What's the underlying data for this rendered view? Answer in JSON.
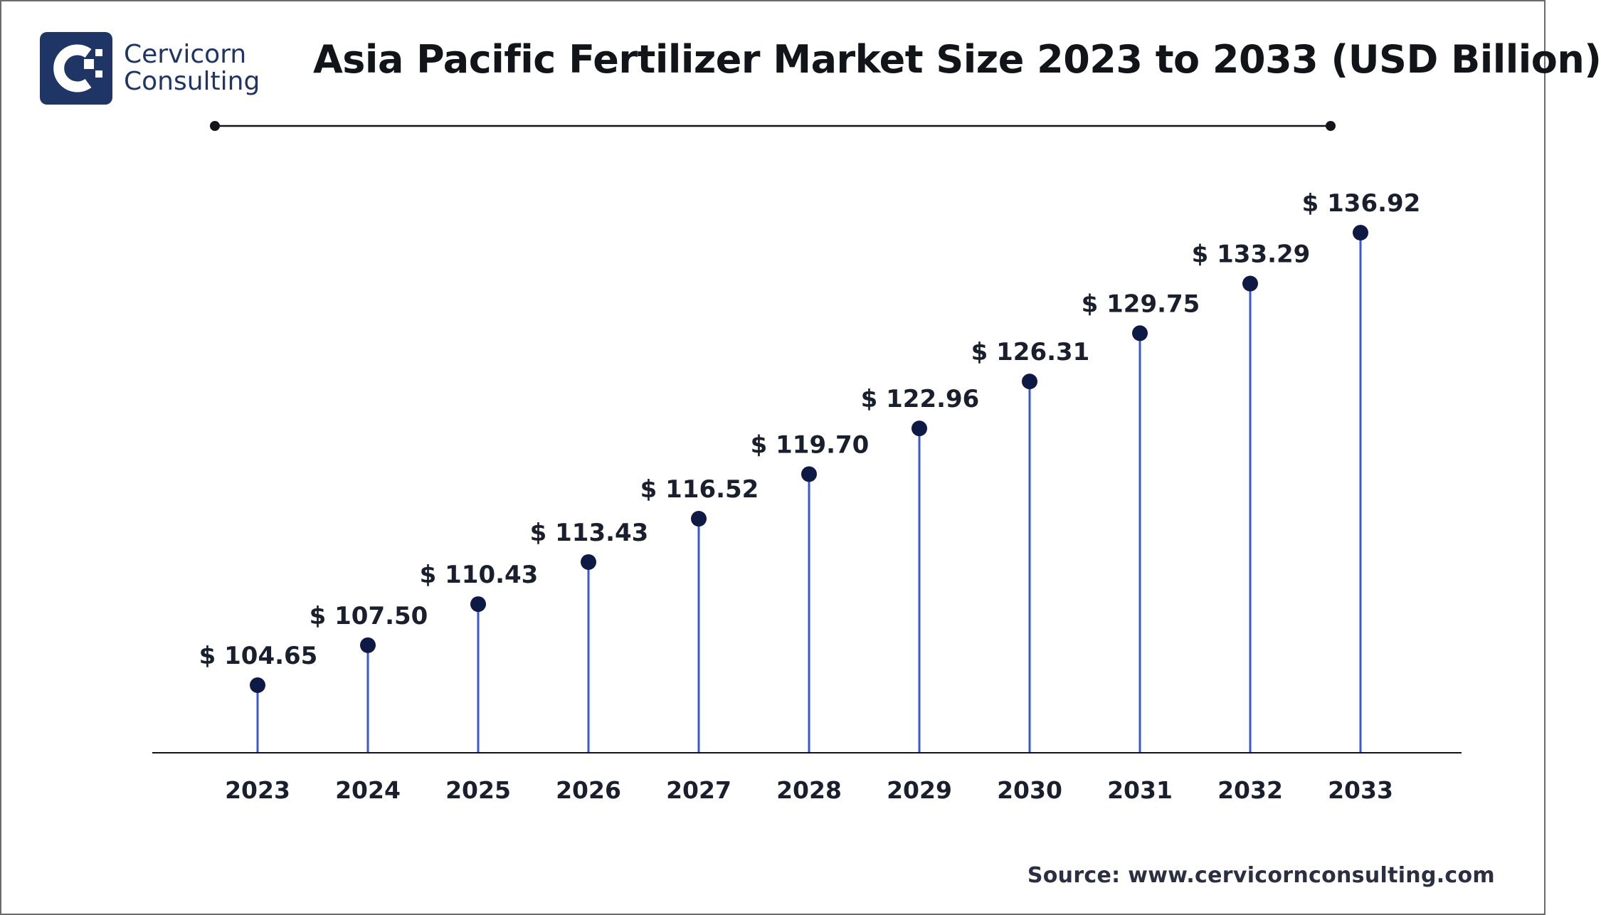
{
  "brand": {
    "line1": "Cervicorn",
    "line2": "Consulting",
    "color": "#1e3566"
  },
  "title": "Asia Pacific Fertilizer Market Size 2023 to 2033 (USD Billion)",
  "source": "Source: www.cervicornconsulting.com",
  "colors": {
    "stem": "#3b57d6",
    "marker": "#0f1a44",
    "axis": "#111418",
    "divider": "#111418"
  },
  "chart_data": {
    "type": "lollipop",
    "title": "Asia Pacific Fertilizer Market Size 2023 to 2033 (USD Billion)",
    "categories": [
      "2023",
      "2024",
      "2025",
      "2026",
      "2027",
      "2028",
      "2029",
      "2030",
      "2031",
      "2032",
      "2033"
    ],
    "values": [
      104.65,
      107.5,
      110.43,
      113.43,
      116.52,
      119.7,
      122.96,
      126.31,
      129.75,
      133.29,
      136.92
    ],
    "labels": [
      "$ 104.65",
      "$ 107.50",
      "$ 110.43",
      "$ 113.43",
      "$ 116.52",
      "$ 119.70",
      "$ 122.96",
      "$ 126.31",
      "$ 129.75",
      "$ 133.29",
      "$ 136.92"
    ],
    "unit": "USD Billion",
    "xlabel": "",
    "ylabel": "",
    "grid": false,
    "legend": "none"
  }
}
